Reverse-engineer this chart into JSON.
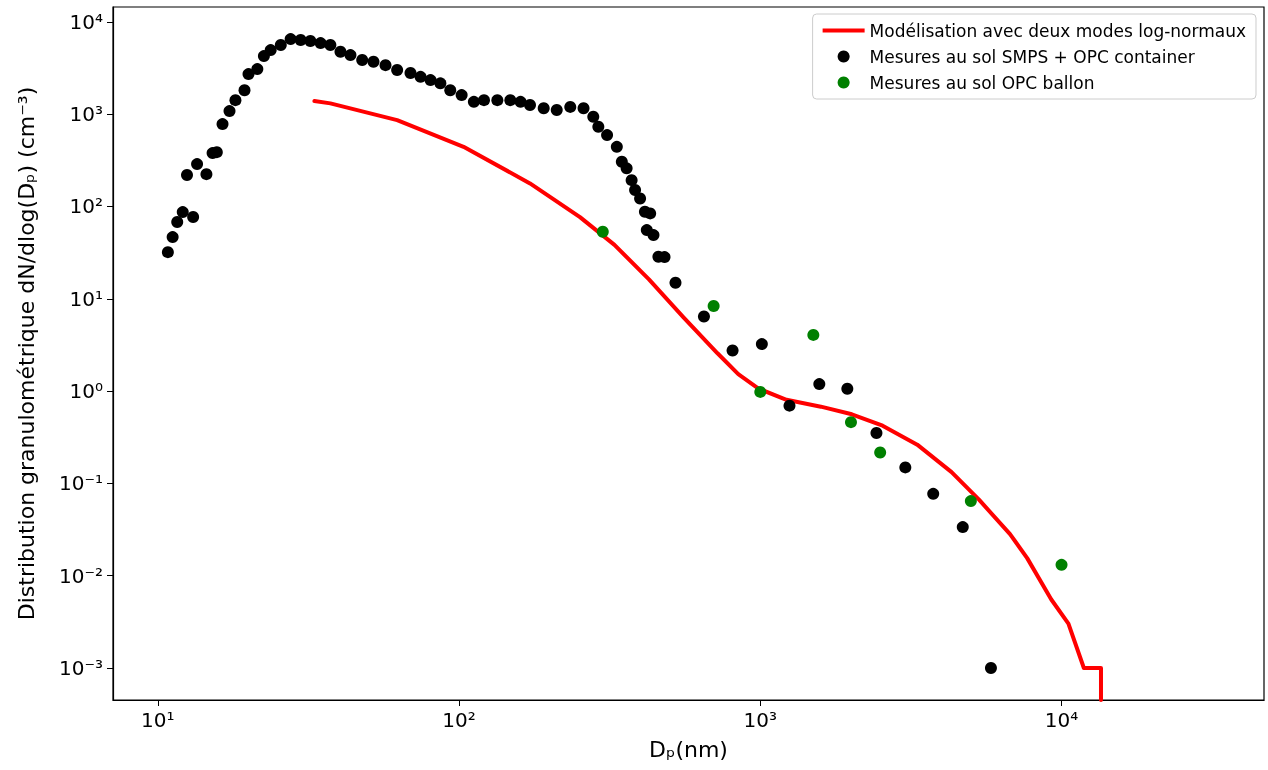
{
  "chart_data": {
    "type": "scatter",
    "xlabel": "Dₚ(nm)",
    "ylabel": "Distribution granulométrique dN/dlog(Dₚ) (cm⁻³)",
    "log": "xy",
    "grid": false,
    "legend": "top right",
    "marker": "circle",
    "xlim": [
      7.1,
      47000
    ],
    "ylim": [
      0.00045,
      14500
    ],
    "xticks": [
      {
        "value": 10,
        "label": "10¹"
      },
      {
        "value": 100,
        "label": "10²"
      },
      {
        "value": 1000,
        "label": "10³"
      },
      {
        "value": 10000,
        "label": "10⁴"
      }
    ],
    "yticks": [
      {
        "value": 0.001,
        "label": "10⁻³"
      },
      {
        "value": 0.01,
        "label": "10⁻²"
      },
      {
        "value": 0.1,
        "label": "10⁻¹"
      },
      {
        "value": 1,
        "label": "10⁰"
      },
      {
        "value": 10,
        "label": "10¹"
      },
      {
        "value": 100,
        "label": "10²"
      },
      {
        "value": 1000,
        "label": "10³"
      },
      {
        "value": 10000,
        "label": "10⁴"
      }
    ],
    "series": [
      {
        "name": "Modélisation avec deux modes log-normaux",
        "type": "line",
        "marker": "none",
        "color": "#ff0000",
        "x": [
          33.1,
          37.4,
          62.3,
          103.5,
          172,
          252,
          328,
          427,
          555,
          721,
          845,
          989,
          1222,
          1589,
          2013,
          2547,
          3319,
          4315,
          5321,
          6745,
          7690,
          9247,
          10540,
          11860,
          13520,
          13520
        ],
        "values": [
          1390,
          1310,
          863,
          443,
          178,
          76.8,
          38.4,
          16.2,
          6.34,
          2.57,
          1.53,
          1.06,
          0.805,
          0.678,
          0.561,
          0.422,
          0.263,
          0.1325,
          0.0666,
          0.0282,
          0.0155,
          0.00552,
          0.00303,
          0.001,
          0.001,
          0.00045
        ]
      },
      {
        "name": "Mesures au sol SMPS + OPC container",
        "color": "#000000",
        "x": [
          10.8,
          11.2,
          11.6,
          12.1,
          12.5,
          13.1,
          13.5,
          14.5,
          15.2,
          15.7,
          16.4,
          17.3,
          18.1,
          19.4,
          20.0,
          21.4,
          22.5,
          23.7,
          25.6,
          27.6,
          29.8,
          32.1,
          34.7,
          37.4,
          40.4,
          43.6,
          47.7,
          52.0,
          57.0,
          62.3,
          69.0,
          74.5,
          80.4,
          86.7,
          93.5,
          102,
          112,
          121,
          134,
          148,
          160,
          172,
          191,
          211,
          234,
          259,
          279,
          290,
          310,
          334,
          347,
          360,
          374,
          384,
          399,
          414,
          431,
          420,
          442,
          459,
          481,
          523,
          650,
          809,
          1012,
          1250,
          1570,
          1945,
          2430,
          3030,
          3750,
          4700,
          5830
        ],
        "values": [
          32,
          46.6,
          68,
          87,
          219,
          77,
          288,
          224,
          379,
          388,
          781,
          1080,
          1420,
          1820,
          2720,
          3080,
          4260,
          4950,
          5610,
          6510,
          6360,
          6200,
          5890,
          5610,
          4740,
          4370,
          3860,
          3700,
          3400,
          3010,
          2790,
          2540,
          2340,
          2160,
          1820,
          1610,
          1360,
          1420,
          1420,
          1420,
          1360,
          1260,
          1160,
          1110,
          1200,
          1160,
          937,
          730,
          594,
          443,
          305,
          259,
          193,
          151,
          122,
          87.6,
          84.2,
          55.5,
          49.0,
          28.5,
          28.3,
          14.9,
          6.43,
          2.75,
          3.23,
          0.695,
          1.19,
          1.06,
          0.351,
          0.149,
          0.077,
          0.0336,
          0.001
        ]
      },
      {
        "name": "Mesures au sol OPC ballon",
        "color": "#008000",
        "x": [
          300,
          700,
          1000,
          1500,
          2000,
          2500,
          5000,
          10000
        ],
        "values": [
          53.2,
          8.36,
          0.98,
          4.06,
          0.461,
          0.216,
          0.0643,
          0.0131
        ]
      }
    ]
  }
}
